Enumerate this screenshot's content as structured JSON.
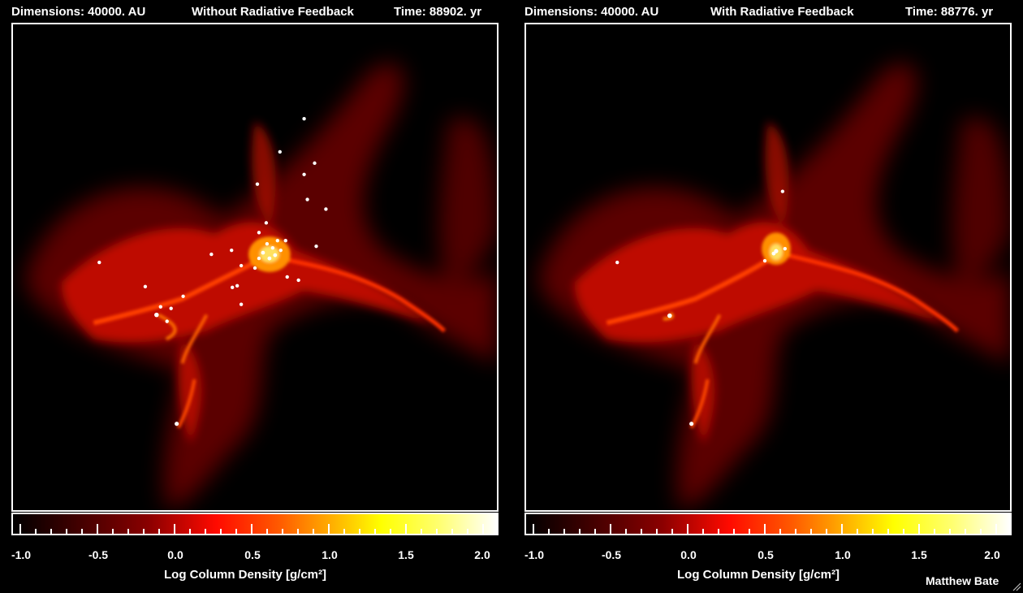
{
  "panels": [
    {
      "dimensions_label": "Dimensions:  40000. AU",
      "title": "Without Radiative Feedback",
      "time_label": "Time:  88902. yr"
    },
    {
      "dimensions_label": "Dimensions:  40000. AU",
      "title": "With Radiative Feedback",
      "time_label": "Time:  88776. yr"
    }
  ],
  "colorbar": {
    "tick_labels": [
      "-1.0",
      "-0.5",
      "0.0",
      "0.5",
      "1.0",
      "1.5",
      "2.0"
    ],
    "axis_label": "Log Column Density [g/cm²]",
    "range": [
      -1.0,
      2.0
    ],
    "colormap": "black-red-yellow-white"
  },
  "credit": "Matthew Bate",
  "colors": {
    "background": "#000000",
    "frame": "#ffffff",
    "gas_dark": "#7a0000",
    "gas_mid": "#ff2000",
    "gas_bright": "#ffcc00",
    "stars": "#ffffff"
  }
}
